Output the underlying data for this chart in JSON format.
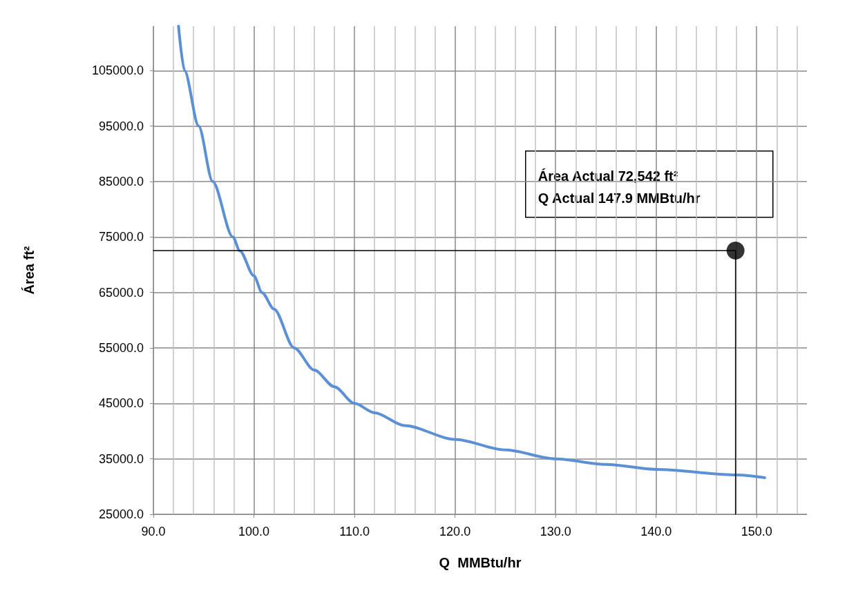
{
  "chart_data": {
    "type": "line",
    "xlabel": "Q  MMBtu/hr",
    "ylabel": "Área ft²",
    "xlim": [
      90,
      155
    ],
    "xticks": [
      {
        "value": 90,
        "label": "90.0"
      },
      {
        "value": 100,
        "label": "100.0"
      },
      {
        "value": 110,
        "label": "110.0"
      },
      {
        "value": 120,
        "label": "120.0"
      },
      {
        "value": 130,
        "label": "130.0"
      },
      {
        "value": 140,
        "label": "140.0"
      },
      {
        "value": 150,
        "label": "150.0"
      }
    ],
    "ylim": [
      25000,
      113000
    ],
    "yticks": [
      {
        "value": 25000,
        "label": "25000.0"
      },
      {
        "value": 35000,
        "label": "35000.0"
      },
      {
        "value": 45000,
        "label": "45000.0"
      },
      {
        "value": 55000,
        "label": "55000.0"
      },
      {
        "value": 65000,
        "label": "65000.0"
      },
      {
        "value": 75000,
        "label": "75000.0"
      },
      {
        "value": 85000,
        "label": "85000.0"
      },
      {
        "value": 95000,
        "label": "95000.0"
      },
      {
        "value": 105000,
        "label": "105000.0"
      }
    ],
    "grid": true,
    "series": [
      {
        "color": "#5b8fd6",
        "marker": "none",
        "x": [
          92.5,
          93.1,
          94.5,
          95.9,
          97.9,
          98.6,
          100.0,
          100.8,
          102.0,
          104.0,
          106.0,
          108.0,
          110.0,
          112.0,
          115.0,
          120.0,
          125.0,
          130.0,
          135.0,
          140.0,
          148.0,
          150.8
        ],
        "values": [
          113000,
          105000,
          95000,
          85000,
          75000,
          72500,
          68000,
          65000,
          62000,
          55000,
          51000,
          48000,
          45000,
          43300,
          41000,
          38500,
          36600,
          35000,
          34000,
          33100,
          32100,
          31600
        ]
      },
      {
        "color": "#000000",
        "marker": "none",
        "x": [
          90,
          147.9,
          147.9
        ],
        "values": [
          72542,
          72542,
          25000
        ]
      },
      {
        "type": "scatter",
        "color": "#000000",
        "marker": "circle",
        "x": [
          147.9
        ],
        "values": [
          72542
        ]
      }
    ],
    "annotations": [
      "Área Actual 72,542 ft²\nQ Actual 147.9 MMBtu/hr"
    ]
  }
}
